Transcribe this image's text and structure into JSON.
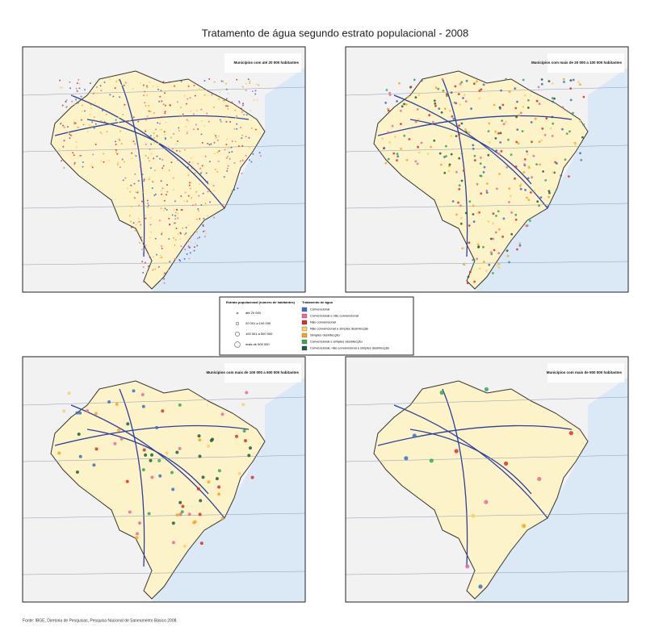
{
  "title": "Tratamento de água segundo estrato populacional - 2008",
  "panels": [
    {
      "label": "Municípios com até 20 000 habitantes"
    },
    {
      "label": "Municípios com mais de 20 000 a 100 000 habitantes"
    },
    {
      "label": "Municípios com mais de 100 000 a 500 000 habitantes"
    },
    {
      "label": "Municípios com mais de 500 000 habitantes"
    }
  ],
  "legend": {
    "size_title": "Estrato populacional (número de habitantes)",
    "sizes": [
      "até 20 000",
      "20 001 a 100 000",
      "100 001 a 500 000",
      "mais de 500 000"
    ],
    "color_title": "Tratamento de água",
    "items": [
      {
        "label": "Convencional",
        "color": "#3b6fc4"
      },
      {
        "label": "Convencional e não convencional",
        "color": "#e86aa0"
      },
      {
        "label": "Não convencional",
        "color": "#d9302c"
      },
      {
        "label": "Não convencional e simples desinfecção",
        "color": "#f5d26b"
      },
      {
        "label": "Simples desinfecção",
        "color": "#f5a623"
      },
      {
        "label": "Convencional e simples desinfecção",
        "color": "#3aa655"
      },
      {
        "label": "Convencional, não convencional e simples desinfecção",
        "color": "#1f5e3a"
      }
    ]
  },
  "source": "Fonte: IBGE, Diretoria de Pesquisas, Pesquisa Nacional de Saneamento Básico 2008."
}
